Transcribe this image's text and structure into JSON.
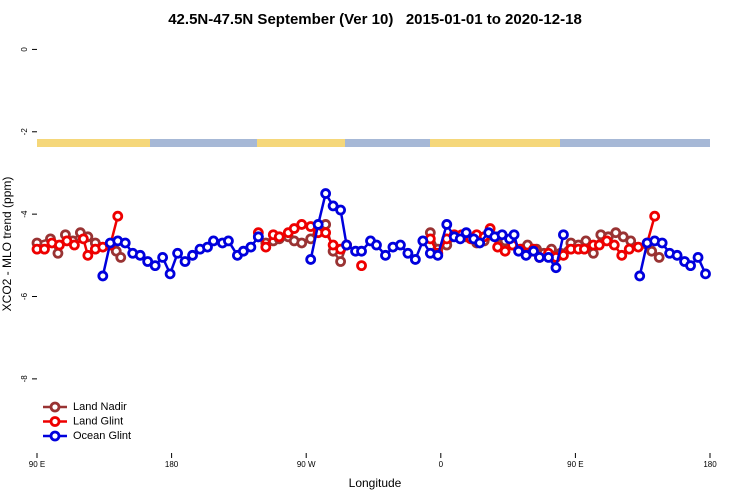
{
  "chart_data": {
    "type": "line",
    "title": "42.5N-47.5N September (Ver 10)   2015-01-01 to 2020-12-18",
    "xlabel": "Longitude",
    "ylabel": "XCO2 - MLO trend (ppm)",
    "xlim": [
      90,
      540
    ],
    "ylim": [
      -9.8,
      0.35
    ],
    "xticks": [
      {
        "value": 90,
        "label": "90 E"
      },
      180,
      {
        "value": 270,
        "label": "90 W"
      },
      {
        "value": 360,
        "label": "0"
      },
      {
        "value": 450,
        "label": "90 E"
      },
      {
        "value": 540,
        "label": "180"
      }
    ],
    "yticks": [
      0,
      -2,
      -4,
      -6,
      -8
    ],
    "legend": "bottom-left",
    "series": [
      {
        "name": "Land Nadir",
        "color": "#993333",
        "x": [
          90,
          99,
          104,
          109,
          114,
          119,
          124,
          129,
          143,
          146,
          190,
          238,
          243,
          248,
          252,
          258,
          262,
          267,
          273,
          278,
          283,
          288,
          293,
          297,
          325,
          353,
          358,
          364,
          371,
          377,
          384,
          389,
          398,
          403,
          408,
          414,
          418,
          424,
          429,
          434,
          440,
          447,
          452,
          457,
          462,
          467,
          472,
          477,
          482,
          487,
          501,
          506
        ],
        "values": [
          -4.7,
          -4.6,
          -4.95,
          -4.5,
          -4.65,
          -4.45,
          -4.55,
          -4.7,
          -4.9,
          -5.05,
          null,
          -4.55,
          -4.7,
          -4.65,
          -4.6,
          -4.55,
          -4.65,
          -4.7,
          -4.6,
          -4.3,
          -4.25,
          -4.9,
          -5.15,
          -4.75,
          null,
          -4.45,
          -4.85,
          -4.75,
          -4.55,
          -4.55,
          -4.7,
          -4.65,
          -4.55,
          -4.65,
          -4.75,
          -4.85,
          -4.75,
          -4.85,
          -4.95,
          -4.85,
          -4.95,
          -4.7,
          -4.75,
          -4.65,
          -4.95,
          -4.5,
          -4.55,
          -4.45,
          -4.55,
          -4.65,
          -4.9,
          -5.05
        ]
      },
      {
        "name": "Land Glint",
        "color": "#ee0000",
        "x": [
          90,
          95,
          100,
          105,
          110,
          115,
          121,
          124,
          129,
          134,
          139,
          144,
          190,
          238,
          243,
          248,
          252,
          258,
          262,
          267,
          273,
          278,
          283,
          288,
          293,
          297,
          302,
          307,
          330,
          353,
          358,
          364,
          369,
          374,
          380,
          384,
          389,
          393,
          398,
          403,
          408,
          413,
          418,
          422,
          426,
          432,
          437,
          442,
          447,
          452,
          456,
          462,
          466,
          471,
          476,
          481,
          486,
          492,
          498,
          503
        ],
        "values": [
          -4.85,
          -4.85,
          -4.7,
          -4.75,
          -4.65,
          -4.75,
          -4.6,
          -5.0,
          -4.85,
          -4.8,
          -4.75,
          -4.05,
          null,
          -4.45,
          -4.8,
          -4.5,
          -4.55,
          -4.45,
          -4.35,
          -4.25,
          -4.3,
          -4.45,
          -4.45,
          -4.75,
          -4.85,
          -4.75,
          null,
          -5.25,
          null,
          -4.6,
          -4.95,
          -4.6,
          -4.5,
          -4.5,
          -4.6,
          -4.5,
          -4.55,
          -4.35,
          -4.8,
          -4.9,
          -4.75,
          -4.85,
          -4.95,
          -4.85,
          -5.05,
          -4.95,
          -5.05,
          -5.0,
          -4.85,
          -4.85,
          -4.85,
          -4.75,
          -4.75,
          -4.65,
          -4.75,
          -5.0,
          -4.85,
          -4.8,
          -4.7,
          -4.05
        ]
      },
      {
        "name": "Ocean Glint",
        "color": "#0000dd",
        "x": [
          134,
          139,
          144,
          149,
          154,
          159,
          164,
          169,
          174,
          179,
          184,
          189,
          194,
          199,
          204,
          208,
          214,
          218,
          224,
          228,
          233,
          238,
          255,
          273,
          278,
          283,
          288,
          293,
          297,
          303,
          307,
          313,
          317,
          323,
          328,
          333,
          338,
          343,
          348,
          353,
          358,
          364,
          369,
          373,
          377,
          382,
          386,
          392,
          396,
          401,
          406,
          409,
          412,
          417,
          422,
          426,
          432,
          437,
          442,
          467,
          493,
          498,
          503,
          508,
          513,
          518,
          523,
          527,
          532,
          537
        ],
        "values": [
          -5.5,
          -4.7,
          -4.65,
          -4.7,
          -4.95,
          -5.0,
          -5.15,
          -5.25,
          -5.05,
          -5.45,
          -4.95,
          -5.15,
          -5.0,
          -4.85,
          -4.8,
          -4.65,
          -4.7,
          -4.65,
          -5.0,
          -4.9,
          -4.8,
          -4.55,
          null,
          -5.1,
          -4.25,
          -3.5,
          -3.8,
          -3.9,
          -4.75,
          -4.9,
          -4.9,
          -4.65,
          -4.75,
          -5.0,
          -4.8,
          -4.75,
          -4.95,
          -5.1,
          -4.65,
          -4.95,
          -5.0,
          -4.25,
          -4.55,
          -4.6,
          -4.45,
          -4.6,
          -4.7,
          -4.45,
          -4.55,
          -4.5,
          -4.6,
          -4.5,
          -4.9,
          -5.0,
          -4.9,
          -5.05,
          -5.05,
          -5.3,
          -4.5,
          null,
          -5.5,
          -4.7,
          -4.65,
          -4.7,
          -4.95,
          -5.0,
          -5.15,
          -5.25,
          -5.05,
          -5.45
        ]
      }
    ]
  }
}
